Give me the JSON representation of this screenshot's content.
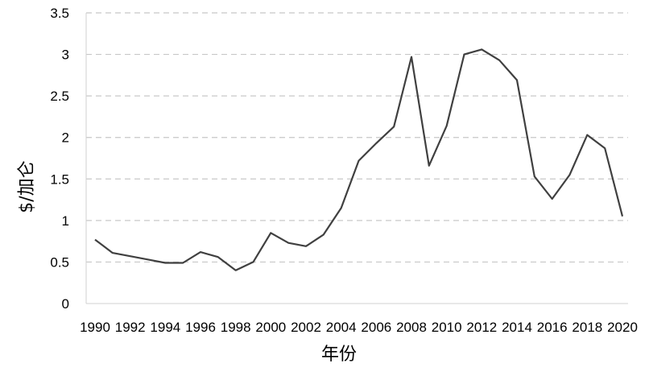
{
  "chart_data": {
    "type": "line",
    "title": "",
    "xlabel": "年份",
    "ylabel": "$/加仑",
    "ylim": [
      0,
      3.5
    ],
    "yticks": [
      "0",
      "0.5",
      "1",
      "1.5",
      "2",
      "2.5",
      "3",
      "3.5"
    ],
    "xlim": [
      1990,
      2020
    ],
    "xticks": [
      "1990",
      "1992",
      "1994",
      "1996",
      "1998",
      "2000",
      "2002",
      "2004",
      "2006",
      "2008",
      "2010",
      "2012",
      "2014",
      "2016",
      "2018",
      "2020"
    ],
    "grid": "horizontal dashed",
    "line_color": "#404040",
    "grid_color": "#c8c8c8",
    "series": [
      {
        "x": [
          1990,
          1991,
          1992,
          1993,
          1994,
          1995,
          1996,
          1997,
          1998,
          1999,
          2000,
          2001,
          2002,
          2003,
          2004,
          2005,
          2006,
          2007,
          2008,
          2009,
          2010,
          2011,
          2012,
          2013,
          2014,
          2015,
          2016,
          2017,
          2018,
          2019,
          2020
        ],
        "values": [
          0.77,
          0.61,
          0.57,
          0.53,
          0.49,
          0.49,
          0.62,
          0.56,
          0.4,
          0.5,
          0.85,
          0.73,
          0.69,
          0.83,
          1.15,
          1.72,
          1.93,
          2.13,
          2.97,
          1.66,
          2.14,
          3.0,
          3.06,
          2.93,
          2.69,
          1.53,
          1.26,
          1.55,
          2.03,
          1.87,
          1.05
        ]
      }
    ]
  }
}
